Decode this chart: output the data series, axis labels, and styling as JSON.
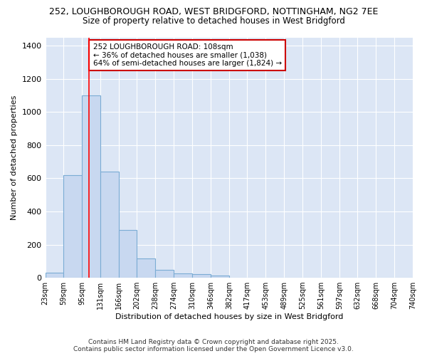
{
  "title_line1": "252, LOUGHBOROUGH ROAD, WEST BRIDGFORD, NOTTINGHAM, NG2 7EE",
  "title_line2": "Size of property relative to detached houses in West Bridgford",
  "xlabel": "Distribution of detached houses by size in West Bridgford",
  "ylabel": "Number of detached properties",
  "bin_labels": [
    "23sqm",
    "59sqm",
    "95sqm",
    "131sqm",
    "166sqm",
    "202sqm",
    "238sqm",
    "274sqm",
    "310sqm",
    "346sqm",
    "382sqm",
    "417sqm",
    "453sqm",
    "489sqm",
    "525sqm",
    "561sqm",
    "597sqm",
    "632sqm",
    "668sqm",
    "704sqm",
    "740sqm"
  ],
  "bar_heights": [
    30,
    620,
    1100,
    640,
    290,
    115,
    48,
    25,
    20,
    15,
    0,
    0,
    0,
    0,
    0,
    0,
    0,
    0,
    0,
    0
  ],
  "bar_color": "#c8d8f0",
  "bar_edge_color": "#7bacd4",
  "red_line_x": 108,
  "bin_edges": [
    23,
    59,
    95,
    131,
    166,
    202,
    238,
    274,
    310,
    346,
    382,
    417,
    453,
    489,
    525,
    561,
    597,
    632,
    668,
    704,
    740
  ],
  "annotation_title": "252 LOUGHBOROUGH ROAD: 108sqm",
  "annotation_line2": "← 36% of detached houses are smaller (1,038)",
  "annotation_line3": "64% of semi-detached houses are larger (1,824) →",
  "annotation_box_color": "#ffffff",
  "annotation_border_color": "#cc0000",
  "ylim": [
    0,
    1450
  ],
  "yticks": [
    0,
    200,
    400,
    600,
    800,
    1000,
    1200,
    1400
  ],
  "plot_bg_color": "#dce6f5",
  "fig_bg_color": "#ffffff",
  "grid_color": "#ffffff",
  "footer_line1": "Contains HM Land Registry data © Crown copyright and database right 2025.",
  "footer_line2": "Contains public sector information licensed under the Open Government Licence v3.0."
}
